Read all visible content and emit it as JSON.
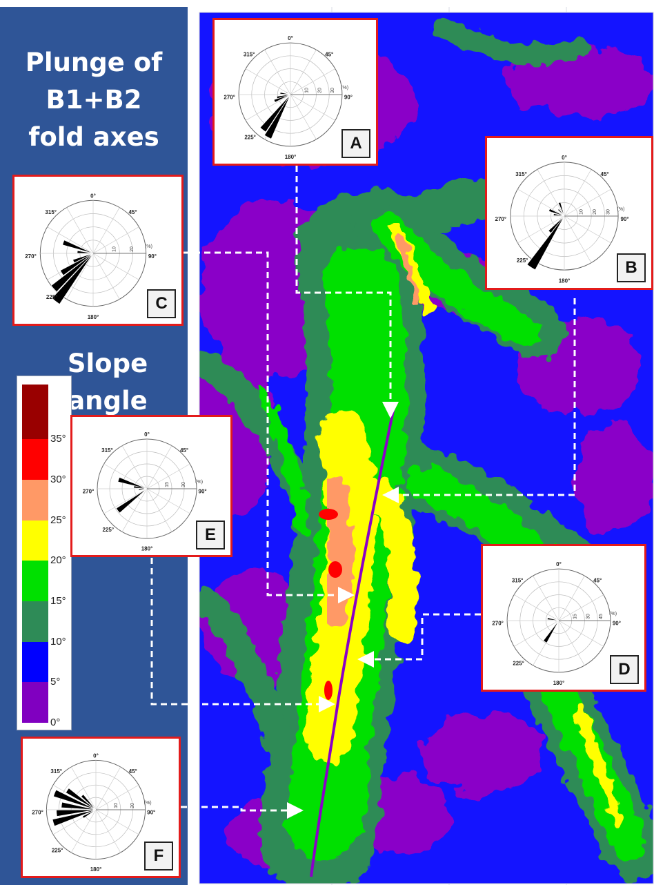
{
  "sidebar": {
    "title_lines": [
      "Plunge of",
      "B1+B2",
      "fold axes"
    ],
    "legend_title_lines": [
      "Slope",
      "angle"
    ]
  },
  "legend": {
    "ticks": [
      "0°",
      "5°",
      "10°",
      "15°",
      "20°",
      "25°",
      "30°",
      "35°"
    ],
    "colors": [
      "#8000c0",
      "#0000ff",
      "#2e8b57",
      "#00e000",
      "#ffff00",
      "#ff9966",
      "#ff0000",
      "#990000"
    ]
  },
  "rose_labels": {
    "directions": [
      "0°",
      "45°",
      "90°",
      "180°",
      "225°",
      "270°",
      "315°"
    ],
    "unit": "(%)"
  },
  "roses": [
    {
      "id": "A",
      "ticks": [
        "10",
        "20",
        "30"
      ],
      "petals": [
        [
          208,
          28
        ],
        [
          218,
          26
        ],
        [
          248,
          10
        ],
        [
          258,
          8
        ],
        [
          278,
          6
        ],
        [
          300,
          3
        ]
      ]
    },
    {
      "id": "B",
      "ticks": [
        "10",
        "20",
        "30"
      ],
      "petals": [
        [
          213,
          34
        ],
        [
          223,
          12
        ],
        [
          278,
          6
        ],
        [
          292,
          9
        ],
        [
          318,
          5
        ],
        [
          340,
          8
        ]
      ]
    },
    {
      "id": "C",
      "ticks": [
        "10",
        "20"
      ],
      "petals": [
        [
          218,
          26
        ],
        [
          228,
          20
        ],
        [
          238,
          14
        ],
        [
          248,
          8
        ],
        [
          290,
          12
        ],
        [
          275,
          6
        ]
      ]
    },
    {
      "id": "D",
      "ticks": [
        "15",
        "30",
        "45"
      ],
      "petals": [
        [
          213,
          22
        ],
        [
          280,
          10
        ],
        [
          300,
          4
        ],
        [
          250,
          3
        ]
      ]
    },
    {
      "id": "E",
      "ticks": [
        "15",
        "30"
      ],
      "petals": [
        [
          233,
          22
        ],
        [
          288,
          18
        ],
        [
          278,
          8
        ],
        [
          262,
          5
        ]
      ]
    },
    {
      "id": "F",
      "ticks": [
        "10",
        "20"
      ],
      "petals": [
        [
          253,
          18
        ],
        [
          265,
          16
        ],
        [
          278,
          14
        ],
        [
          292,
          18
        ],
        [
          304,
          14
        ],
        [
          316,
          8
        ],
        [
          240,
          6
        ]
      ]
    }
  ]
}
